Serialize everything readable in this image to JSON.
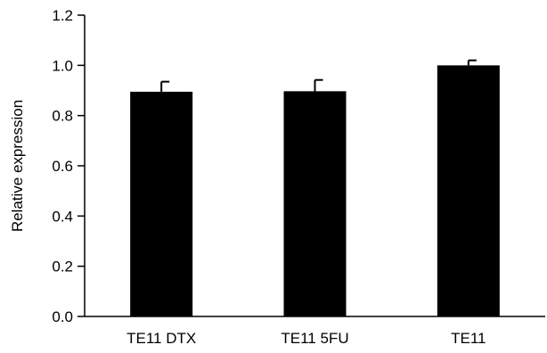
{
  "chart_data": {
    "type": "bar",
    "title": "",
    "xlabel": "",
    "ylabel": "Relative expression",
    "ylim": [
      0,
      1.2
    ],
    "yticks": [
      "0.0",
      "0.2",
      "0.4",
      "0.6",
      "0.8",
      "1.0",
      "1.2"
    ],
    "ytick_values": [
      0,
      0.2,
      0.4,
      0.6,
      0.8,
      1.0,
      1.2
    ],
    "categories": [
      "TE11 DTX",
      "TE11 5FU",
      "TE11"
    ],
    "values": [
      0.895,
      0.897,
      1.0
    ],
    "errors": [
      0.04,
      0.045,
      0.02
    ],
    "bar_color": "#000000",
    "grid": false,
    "legend": "none"
  }
}
